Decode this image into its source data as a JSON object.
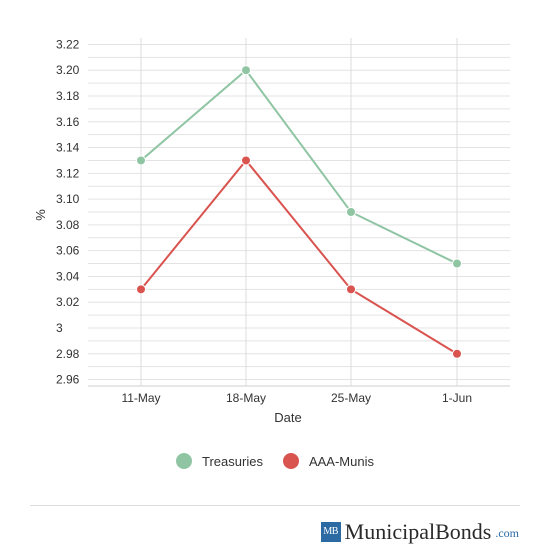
{
  "chart_data": {
    "type": "line",
    "xlabel": "Date",
    "ylabel": "%",
    "categories": [
      "11-May",
      "18-May",
      "25-May",
      "1-Jun"
    ],
    "y_ticks": [
      "2.96",
      "2.98",
      "3",
      "3.02",
      "3.04",
      "3.06",
      "3.08",
      "3.10",
      "3.12",
      "3.14",
      "3.16",
      "3.18",
      "3.20",
      "3.22"
    ],
    "ylim": [
      2.955,
      3.225
    ],
    "grid": true,
    "legend_position": "bottom",
    "series": [
      {
        "name": "Treasuries",
        "values": [
          3.13,
          3.2,
          3.09,
          3.05
        ],
        "color": "#8fc5a3"
      },
      {
        "name": "AAA-Munis",
        "values": [
          3.03,
          3.13,
          3.03,
          2.98
        ],
        "color": "#d9534f"
      }
    ]
  },
  "brand": {
    "logo": "MB",
    "name": "MunicipalBonds",
    "domain": ".com",
    "logo_color": "#2c6aa4"
  }
}
